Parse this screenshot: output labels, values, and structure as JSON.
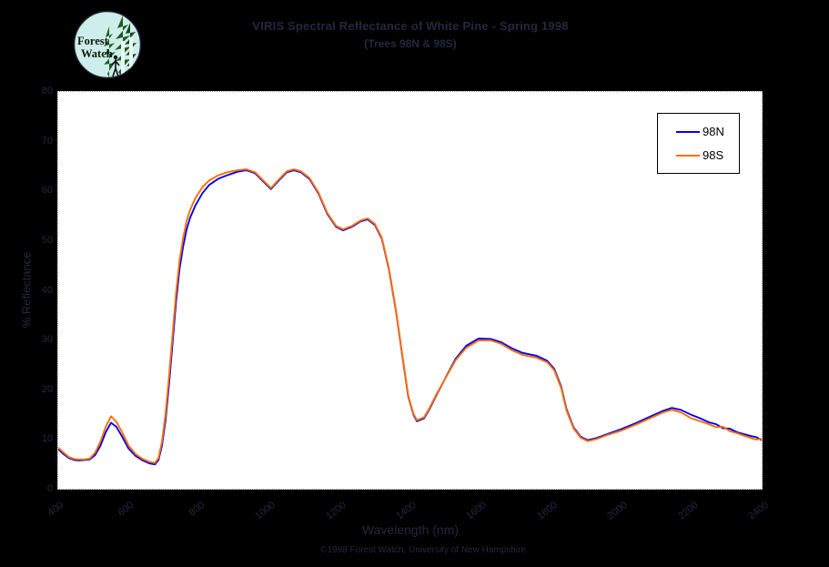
{
  "page": {
    "background": "#000000",
    "faint_text_color": "#262640"
  },
  "logo": {
    "line1": "Forest",
    "line2": "Watch"
  },
  "legend": {
    "entries": [
      {
        "label": "98N",
        "color": "#0404EE"
      },
      {
        "label": "98S",
        "color": "#FF6E00"
      }
    ]
  },
  "chart_data": {
    "type": "line",
    "title_line1": "VIRIS Spectral Reflectance of White Pine - Spring 1998",
    "title_line2": "(Trees 98N & 98S)",
    "xlabel": "Wavelength (nm)",
    "ylabel": "% Reflectance",
    "footer": "©1998 Forest Watch, University of New Hampshire",
    "xlim": [
      400,
      2400
    ],
    "ylim": [
      0,
      80
    ],
    "x_ticks": [
      400,
      600,
      800,
      1000,
      1200,
      1400,
      1600,
      1800,
      2000,
      2200,
      2400
    ],
    "y_ticks": [
      0,
      10,
      20,
      30,
      40,
      50,
      60,
      70,
      80
    ],
    "grid": false,
    "legend_position": "upper right",
    "series": [
      {
        "name": "98N",
        "color": "#0404EE",
        "points": [
          [
            400,
            8.0
          ],
          [
            415,
            7.0
          ],
          [
            430,
            6.2
          ],
          [
            445,
            5.8
          ],
          [
            460,
            5.7
          ],
          [
            475,
            5.8
          ],
          [
            490,
            5.9
          ],
          [
            505,
            6.8
          ],
          [
            520,
            8.7
          ],
          [
            535,
            11.4
          ],
          [
            550,
            13.3
          ],
          [
            565,
            12.5
          ],
          [
            580,
            10.7
          ],
          [
            600,
            8.1
          ],
          [
            620,
            6.6
          ],
          [
            640,
            5.7
          ],
          [
            660,
            5.1
          ],
          [
            675,
            4.9
          ],
          [
            685,
            5.8
          ],
          [
            695,
            8.7
          ],
          [
            705,
            13.8
          ],
          [
            715,
            21.0
          ],
          [
            725,
            29.3
          ],
          [
            735,
            37.8
          ],
          [
            745,
            44.3
          ],
          [
            755,
            48.8
          ],
          [
            765,
            52.3
          ],
          [
            775,
            54.6
          ],
          [
            790,
            57.1
          ],
          [
            810,
            59.6
          ],
          [
            830,
            61.3
          ],
          [
            855,
            62.5
          ],
          [
            880,
            63.2
          ],
          [
            910,
            63.9
          ],
          [
            935,
            64.2
          ],
          [
            960,
            63.6
          ],
          [
            985,
            61.8
          ],
          [
            1005,
            60.4
          ],
          [
            1025,
            62.0
          ],
          [
            1050,
            63.8
          ],
          [
            1070,
            64.2
          ],
          [
            1090,
            63.8
          ],
          [
            1115,
            62.4
          ],
          [
            1140,
            59.5
          ],
          [
            1165,
            55.4
          ],
          [
            1190,
            52.8
          ],
          [
            1210,
            52.1
          ],
          [
            1235,
            52.8
          ],
          [
            1260,
            53.9
          ],
          [
            1280,
            54.3
          ],
          [
            1300,
            53.2
          ],
          [
            1320,
            50.4
          ],
          [
            1340,
            44.3
          ],
          [
            1360,
            36.0
          ],
          [
            1380,
            25.9
          ],
          [
            1395,
            18.6
          ],
          [
            1410,
            14.9
          ],
          [
            1420,
            13.6
          ],
          [
            1440,
            14.2
          ],
          [
            1455,
            16.0
          ],
          [
            1475,
            18.8
          ],
          [
            1505,
            22.9
          ],
          [
            1530,
            26.2
          ],
          [
            1560,
            28.8
          ],
          [
            1595,
            30.3
          ],
          [
            1630,
            30.2
          ],
          [
            1660,
            29.5
          ],
          [
            1690,
            28.3
          ],
          [
            1720,
            27.4
          ],
          [
            1760,
            26.8
          ],
          [
            1790,
            25.8
          ],
          [
            1810,
            24.2
          ],
          [
            1830,
            20.6
          ],
          [
            1845,
            16.1
          ],
          [
            1865,
            12.4
          ],
          [
            1885,
            10.5
          ],
          [
            1905,
            9.8
          ],
          [
            1930,
            10.2
          ],
          [
            1960,
            11.0
          ],
          [
            2000,
            12.0
          ],
          [
            2045,
            13.3
          ],
          [
            2085,
            14.6
          ],
          [
            2120,
            15.7
          ],
          [
            2145,
            16.3
          ],
          [
            2170,
            15.9
          ],
          [
            2200,
            14.9
          ],
          [
            2225,
            14.2
          ],
          [
            2250,
            13.4
          ],
          [
            2270,
            13.0
          ],
          [
            2290,
            12.2
          ],
          [
            2310,
            12.1
          ],
          [
            2330,
            11.4
          ],
          [
            2350,
            11.0
          ],
          [
            2370,
            10.6
          ],
          [
            2385,
            10.4
          ],
          [
            2400,
            9.8
          ]
        ]
      },
      {
        "name": "98S",
        "color": "#FF6E00",
        "points": [
          [
            400,
            8.3
          ],
          [
            415,
            7.3
          ],
          [
            430,
            6.4
          ],
          [
            445,
            6.0
          ],
          [
            460,
            5.9
          ],
          [
            475,
            5.9
          ],
          [
            490,
            6.1
          ],
          [
            505,
            7.3
          ],
          [
            520,
            9.5
          ],
          [
            535,
            12.5
          ],
          [
            550,
            14.6
          ],
          [
            565,
            13.5
          ],
          [
            580,
            11.6
          ],
          [
            600,
            8.7
          ],
          [
            620,
            7.0
          ],
          [
            640,
            6.0
          ],
          [
            660,
            5.4
          ],
          [
            675,
            5.2
          ],
          [
            685,
            6.2
          ],
          [
            695,
            9.5
          ],
          [
            705,
            15.0
          ],
          [
            715,
            22.5
          ],
          [
            725,
            31.0
          ],
          [
            735,
            39.5
          ],
          [
            745,
            46.0
          ],
          [
            755,
            50.5
          ],
          [
            765,
            54.0
          ],
          [
            775,
            56.2
          ],
          [
            790,
            58.6
          ],
          [
            810,
            60.8
          ],
          [
            830,
            62.2
          ],
          [
            855,
            63.2
          ],
          [
            880,
            63.8
          ],
          [
            910,
            64.2
          ],
          [
            935,
            64.4
          ],
          [
            960,
            63.8
          ],
          [
            985,
            62.0
          ],
          [
            1005,
            60.6
          ],
          [
            1025,
            62.2
          ],
          [
            1050,
            64.0
          ],
          [
            1070,
            64.4
          ],
          [
            1090,
            64.0
          ],
          [
            1115,
            62.6
          ],
          [
            1140,
            59.7
          ],
          [
            1165,
            55.6
          ],
          [
            1190,
            53.0
          ],
          [
            1210,
            52.3
          ],
          [
            1235,
            53.0
          ],
          [
            1260,
            54.1
          ],
          [
            1280,
            54.5
          ],
          [
            1300,
            53.4
          ],
          [
            1320,
            50.6
          ],
          [
            1340,
            44.5
          ],
          [
            1360,
            36.2
          ],
          [
            1380,
            26.1
          ],
          [
            1395,
            18.8
          ],
          [
            1410,
            15.1
          ],
          [
            1420,
            13.8
          ],
          [
            1440,
            14.4
          ],
          [
            1455,
            16.2
          ],
          [
            1475,
            19.0
          ],
          [
            1505,
            22.8
          ],
          [
            1530,
            25.9
          ],
          [
            1560,
            28.4
          ],
          [
            1595,
            29.9
          ],
          [
            1630,
            29.9
          ],
          [
            1660,
            29.2
          ],
          [
            1690,
            27.9
          ],
          [
            1720,
            27.0
          ],
          [
            1760,
            26.4
          ],
          [
            1790,
            25.5
          ],
          [
            1810,
            23.9
          ],
          [
            1830,
            20.3
          ],
          [
            1845,
            15.8
          ],
          [
            1865,
            12.2
          ],
          [
            1885,
            10.3
          ],
          [
            1905,
            9.6
          ],
          [
            1930,
            10.0
          ],
          [
            1960,
            10.8
          ],
          [
            2000,
            11.7
          ],
          [
            2045,
            13.0
          ],
          [
            2085,
            14.3
          ],
          [
            2120,
            15.4
          ],
          [
            2145,
            15.9
          ],
          [
            2170,
            15.4
          ],
          [
            2200,
            14.2
          ],
          [
            2225,
            13.6
          ],
          [
            2250,
            13.0
          ],
          [
            2270,
            12.4
          ],
          [
            2290,
            12.5
          ],
          [
            2310,
            11.6
          ],
          [
            2330,
            11.2
          ],
          [
            2350,
            10.7
          ],
          [
            2370,
            10.2
          ],
          [
            2385,
            9.9
          ],
          [
            2400,
            10.1
          ]
        ]
      }
    ]
  }
}
